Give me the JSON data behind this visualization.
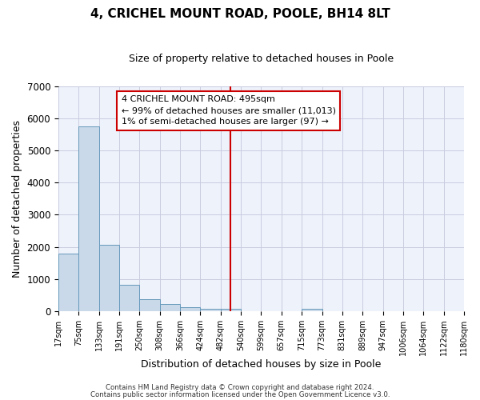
{
  "title": "4, CRICHEL MOUNT ROAD, POOLE, BH14 8LT",
  "subtitle": "Size of property relative to detached houses in Poole",
  "xlabel": "Distribution of detached houses by size in Poole",
  "ylabel": "Number of detached properties",
  "bar_values": [
    1780,
    5750,
    2060,
    820,
    370,
    215,
    110,
    80,
    60,
    0,
    0,
    0,
    60,
    0,
    0,
    0,
    0,
    0,
    0,
    0
  ],
  "bin_labels": [
    "17sqm",
    "75sqm",
    "133sqm",
    "191sqm",
    "250sqm",
    "308sqm",
    "366sqm",
    "424sqm",
    "482sqm",
    "540sqm",
    "599sqm",
    "657sqm",
    "715sqm",
    "773sqm",
    "831sqm",
    "889sqm",
    "947sqm",
    "1006sqm",
    "1064sqm",
    "1122sqm",
    "1180sqm"
  ],
  "bar_color": "#c9d9ea",
  "bar_edgecolor": "#6699bb",
  "background_color": "#eef2fa",
  "grid_color": "#c8cce0",
  "vline_color": "#cc0000",
  "vline_x_idx": 8.5,
  "ylim": [
    0,
    7000
  ],
  "yticks": [
    0,
    1000,
    2000,
    3000,
    4000,
    5000,
    6000,
    7000
  ],
  "annotation_title": "4 CRICHEL MOUNT ROAD: 495sqm",
  "annotation_line1": "← 99% of detached houses are smaller (11,013)",
  "annotation_line2": "1% of semi-detached houses are larger (97) →",
  "footer_line1": "Contains HM Land Registry data © Crown copyright and database right 2024.",
  "footer_line2": "Contains public sector information licensed under the Open Government Licence v3.0."
}
